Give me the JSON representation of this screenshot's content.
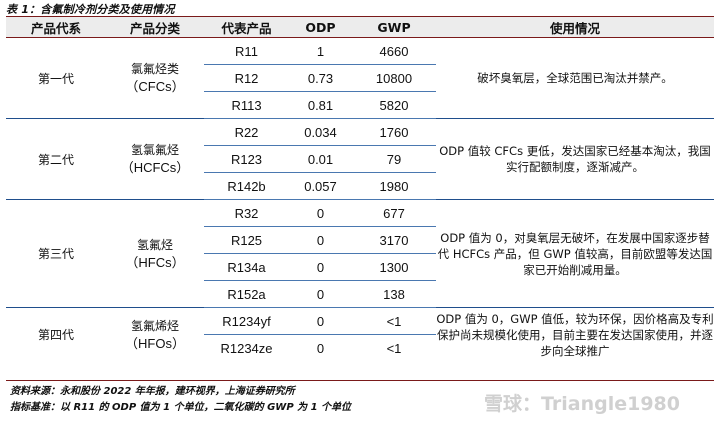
{
  "caption": "表 1：含氟制冷剂分类及使用情况",
  "headers": [
    "产品代系",
    "产品分类",
    "代表产品",
    "ODP",
    "GWP",
    "使用情况"
  ],
  "groups": [
    {
      "generation": "第一代",
      "class_name": "氯氟烃类",
      "class_abbr": "（CFCs）",
      "description": "破坏臭氧层，全球范围已淘汰并禁产。",
      "rows": [
        {
          "code": "R11",
          "odp": "1",
          "gwp": "4660"
        },
        {
          "code": "R12",
          "odp": "0.73",
          "gwp": "10800"
        },
        {
          "code": "R113",
          "odp": "0.81",
          "gwp": "5820"
        }
      ]
    },
    {
      "generation": "第二代",
      "class_name": "氢氯氟烃",
      "class_abbr": "（HCFCs）",
      "description": "ODP 值较 CFCs 更低，发达国家已经基本淘汰，我国实行配额制度，逐渐减产。",
      "rows": [
        {
          "code": "R22",
          "odp": "0.034",
          "gwp": "1760"
        },
        {
          "code": "R123",
          "odp": "0.01",
          "gwp": "79"
        },
        {
          "code": "R142b",
          "odp": "0.057",
          "gwp": "1980"
        }
      ]
    },
    {
      "generation": "第三代",
      "class_name": "氢氟烃",
      "class_abbr": "（HFCs）",
      "description": "ODP 值为 0，对臭氧层无破坏，在发展中国家逐步替代 HCFCs 产品，但 GWP 值较高，目前欧盟等发达国家已开始削减用量。",
      "rows": [
        {
          "code": "R32",
          "odp": "0",
          "gwp": "677"
        },
        {
          "code": "R125",
          "odp": "0",
          "gwp": "3170"
        },
        {
          "code": "R134a",
          "odp": "0",
          "gwp": "1300"
        },
        {
          "code": "R152a",
          "odp": "0",
          "gwp": "138"
        }
      ]
    },
    {
      "generation": "第四代",
      "class_name": "氢氟烯烃",
      "class_abbr": "（HFOs）",
      "description": "ODP 值为 0，GWP 值低，较为环保，因价格高及专利保护尚未规模化使用，目前主要在发达国家使用，并逐步向全球推广",
      "rows": [
        {
          "code": "R1234yf",
          "odp": "0",
          "gwp": "<1"
        },
        {
          "code": "R1234ze",
          "odp": "0",
          "gwp": "<1"
        }
      ]
    }
  ],
  "source_note": "资料来源：永和股份 2022 年年报，建环视界，上海证券研究所",
  "basis_note": "指标基准：以 R11 的 ODP 值为 1 个单位，二氧化碳的 GWP 为 1 个单位",
  "watermark": "雪球：Triangle1980"
}
